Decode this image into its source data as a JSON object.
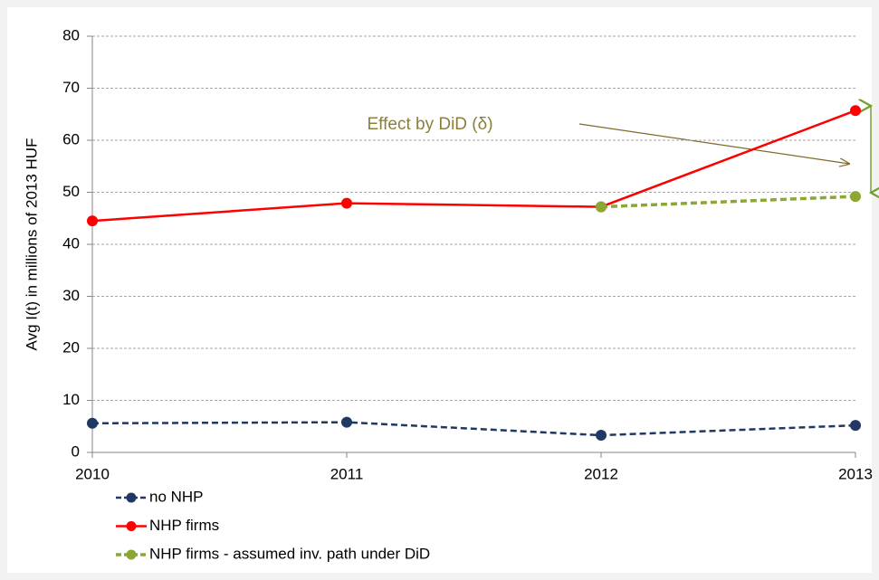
{
  "chart_data": {
    "type": "line",
    "y_label": "Avg I(t) in millions of 2013 HUF",
    "annotation": "Effect by DiD (δ)",
    "x": [
      2010,
      2011,
      2012,
      2013
    ],
    "xlim": [
      2010,
      2013
    ],
    "xticks": [
      2010,
      2011,
      2012,
      2013
    ],
    "ylim": [
      0,
      80
    ],
    "yticks": [
      0,
      10,
      20,
      30,
      40,
      50,
      60,
      70,
      80
    ],
    "grid": true,
    "legend": "bottom-left",
    "series": [
      {
        "name": "no NHP",
        "color": "#1f3864",
        "dashed": true,
        "values": [
          5.6,
          5.8,
          3.3,
          5.2
        ]
      },
      {
        "name": "NHP firms",
        "color": "#ff0000",
        "dashed": false,
        "values": [
          44.5,
          47.9,
          47.2,
          65.7
        ]
      },
      {
        "name": "NHP firms - assumed inv. path under DiD",
        "color": "#8aa832",
        "dashed": true,
        "values": [
          null,
          null,
          47.2,
          49.2
        ]
      }
    ]
  }
}
